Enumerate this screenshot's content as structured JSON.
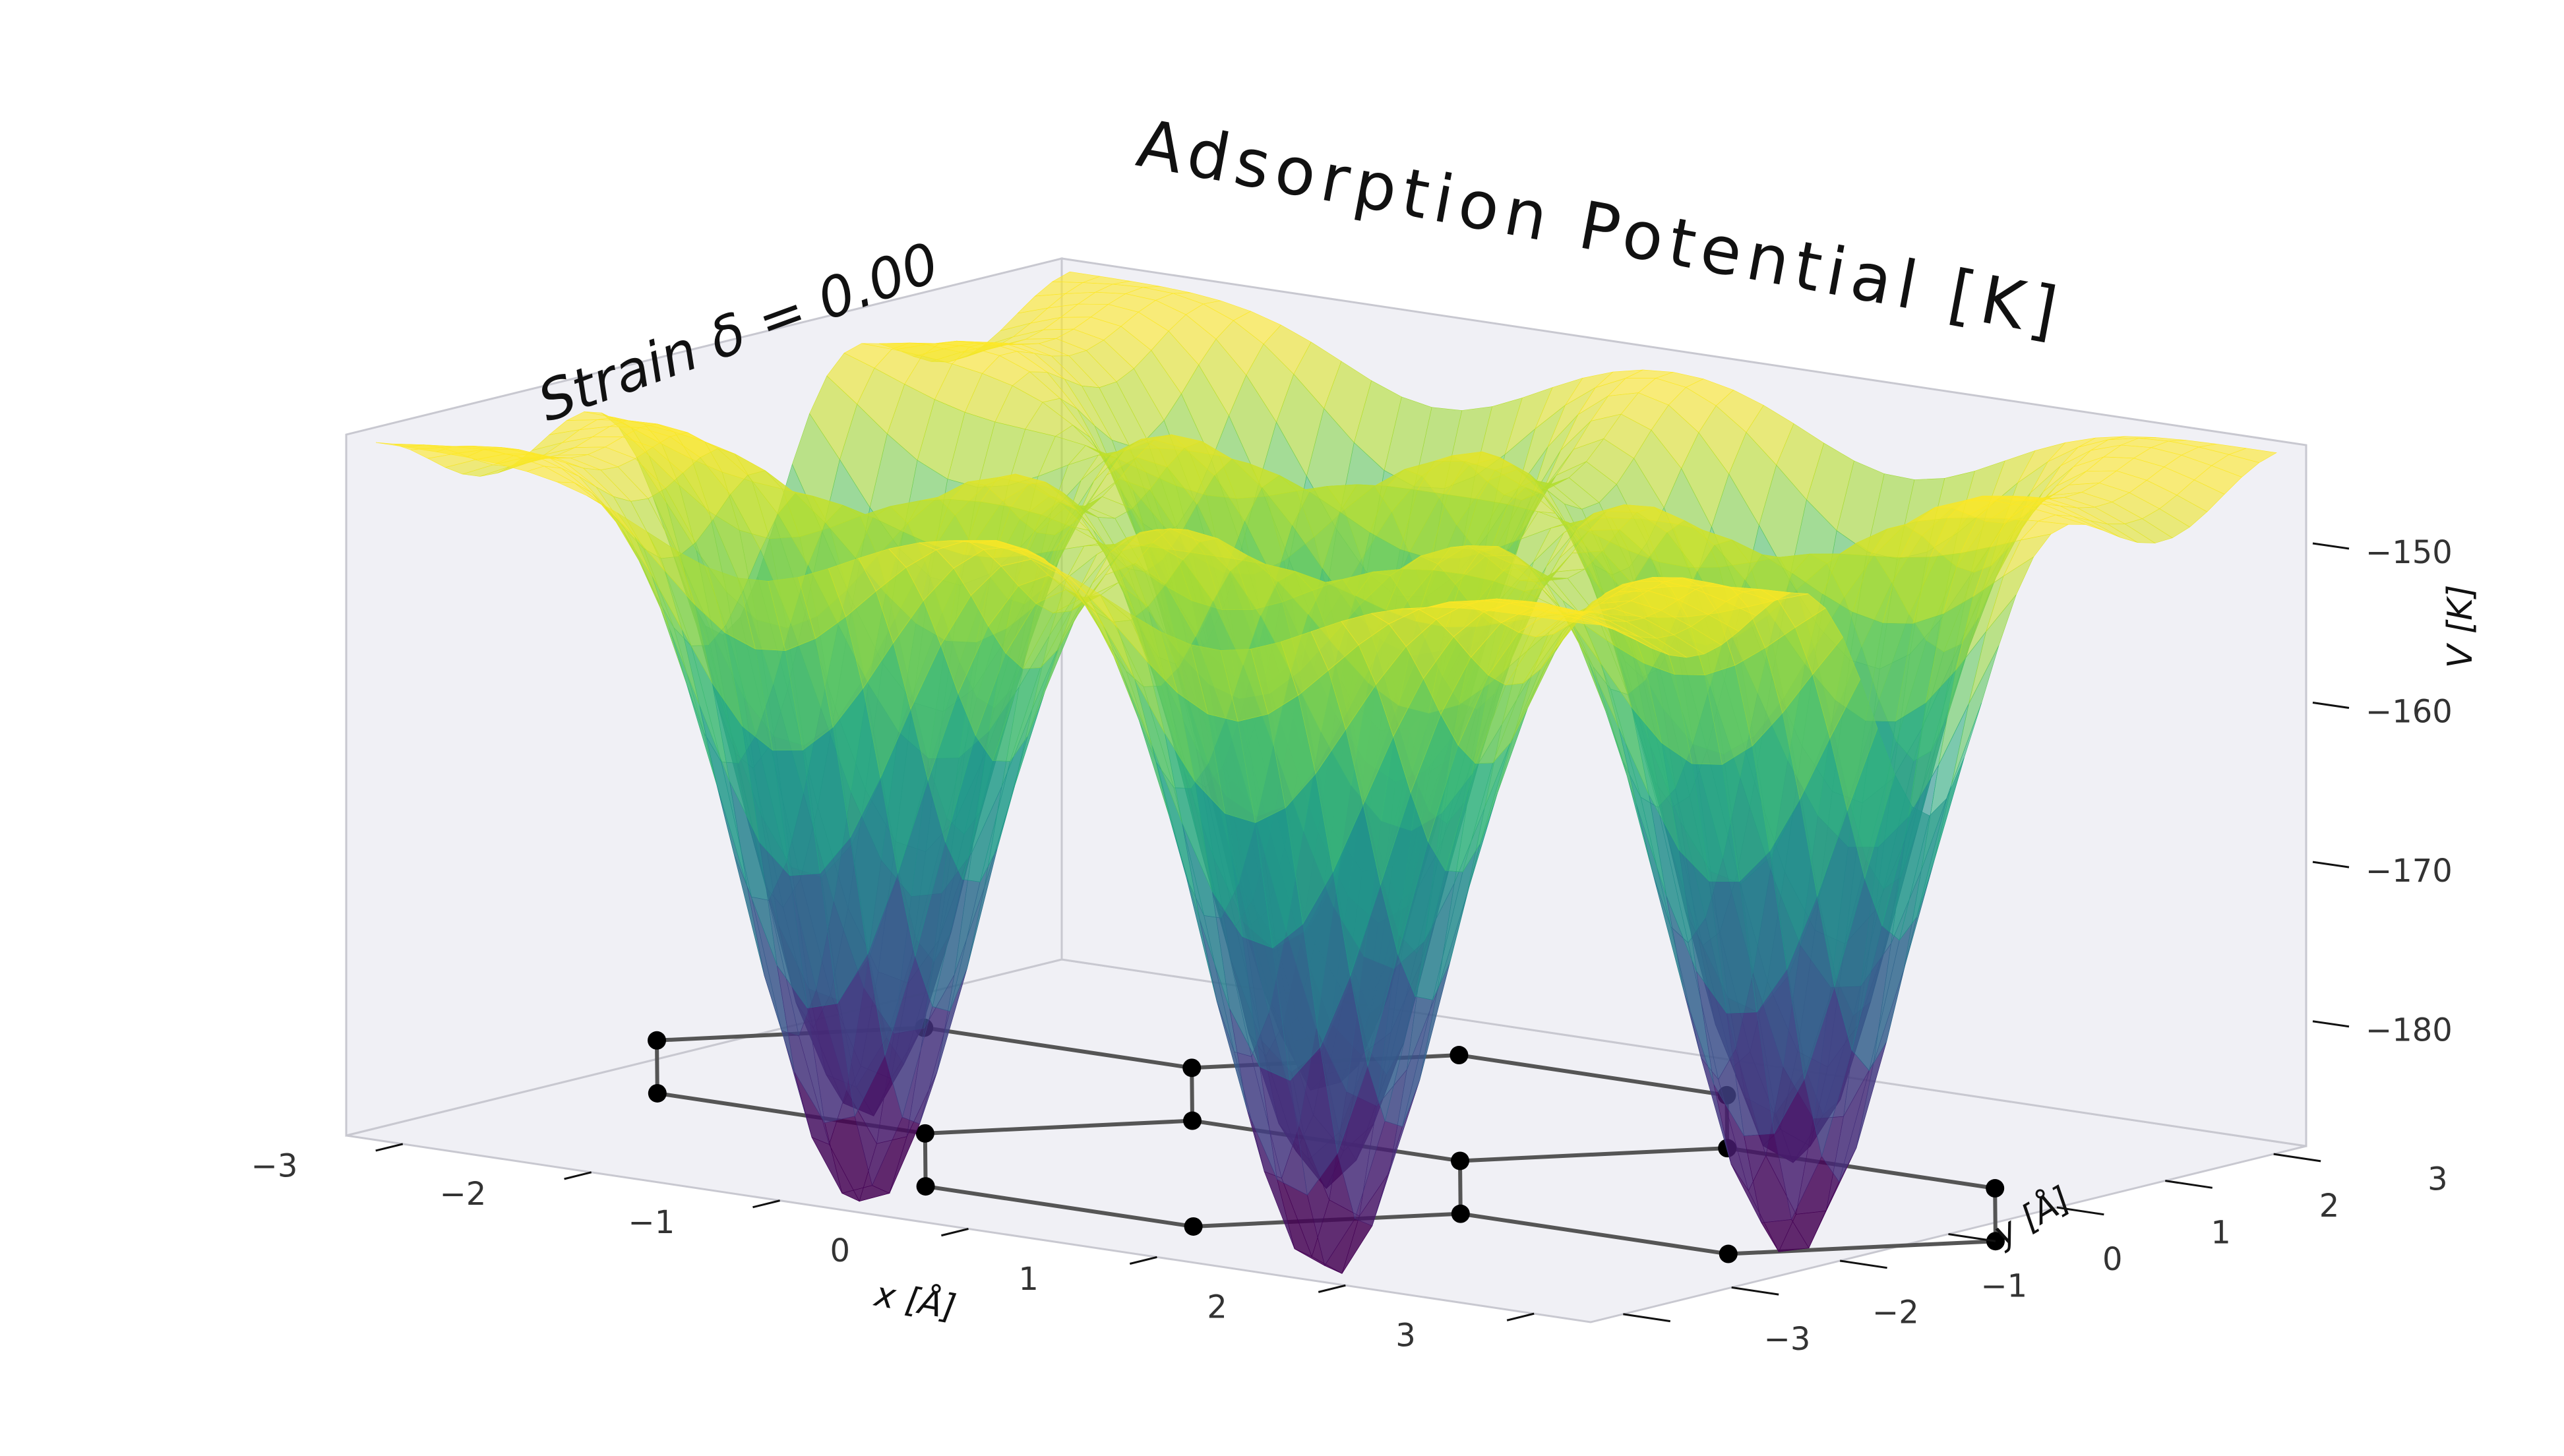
{
  "chart_data": {
    "type": "surface3d",
    "title": "Adsorption Potential [K]",
    "annotation": "Strain δ = 0.00",
    "xlabel": "x [Å]",
    "ylabel": "y [Å]",
    "zlabel": "V [K]",
    "xlim": [
      -3.3,
      3.3
    ],
    "ylim": [
      -3.3,
      3.3
    ],
    "zlim": [
      -188,
      -144
    ],
    "x_ticks": [
      {
        "value": -3,
        "label": "−3"
      },
      {
        "value": -2,
        "label": "−2"
      },
      {
        "value": -1,
        "label": "−1"
      },
      {
        "value": 0,
        "label": "0"
      },
      {
        "value": 1,
        "label": "1"
      },
      {
        "value": 2,
        "label": "2"
      },
      {
        "value": 3,
        "label": "3"
      }
    ],
    "y_ticks": [
      {
        "value": -3,
        "label": "−3"
      },
      {
        "value": -2,
        "label": "−2"
      },
      {
        "value": -1,
        "label": "−1"
      },
      {
        "value": 0,
        "label": "0"
      },
      {
        "value": 1,
        "label": "1"
      },
      {
        "value": 2,
        "label": "2"
      },
      {
        "value": 3,
        "label": "3"
      }
    ],
    "z_ticks": [
      {
        "value": -150,
        "label": "−150"
      },
      {
        "value": -160,
        "label": "−160"
      },
      {
        "value": -170,
        "label": "−170"
      },
      {
        "value": -180,
        "label": "−180"
      }
    ],
    "surface": {
      "colormap": "viridis",
      "alpha": 0.6,
      "z_min": -187,
      "z_max": -146,
      "minima_xy": [
        [
          -2.46,
          0
        ],
        [
          0,
          0
        ],
        [
          2.46,
          0
        ],
        [
          -1.23,
          2.13
        ],
        [
          1.23,
          2.13
        ],
        [
          -1.23,
          -2.13
        ],
        [
          1.23,
          -2.13
        ]
      ]
    },
    "lattice": {
      "z": -188,
      "atoms": [
        [
          -0.71,
          -2.46
        ],
        [
          0.71,
          -2.46
        ],
        [
          1.42,
          -1.23
        ],
        [
          0.71,
          0
        ],
        [
          -0.71,
          0
        ],
        [
          -1.42,
          -1.23
        ],
        [
          2.84,
          -1.23
        ],
        [
          3.55,
          0
        ],
        [
          2.84,
          1.23
        ],
        [
          1.42,
          1.23
        ],
        [
          -1.42,
          1.23
        ],
        [
          -2.84,
          1.23
        ],
        [
          -3.55,
          0
        ],
        [
          -2.84,
          -1.23
        ],
        [
          -0.71,
          2.46
        ],
        [
          0.71,
          2.46
        ]
      ],
      "bonds": [
        [
          0,
          1
        ],
        [
          1,
          2
        ],
        [
          2,
          3
        ],
        [
          3,
          4
        ],
        [
          4,
          5
        ],
        [
          5,
          0
        ],
        [
          2,
          6
        ],
        [
          6,
          7
        ],
        [
          7,
          8
        ],
        [
          8,
          9
        ],
        [
          9,
          3
        ],
        [
          4,
          10
        ],
        [
          10,
          11
        ],
        [
          11,
          12
        ],
        [
          12,
          13
        ],
        [
          13,
          5
        ],
        [
          10,
          14
        ],
        [
          14,
          15
        ],
        [
          15,
          9
        ]
      ]
    },
    "colors": {
      "pane": "#f0f0f5",
      "pane_edge": "#c8c8d0",
      "grid": "#ffffff",
      "bond": "#555555",
      "atom": "#000000"
    }
  }
}
